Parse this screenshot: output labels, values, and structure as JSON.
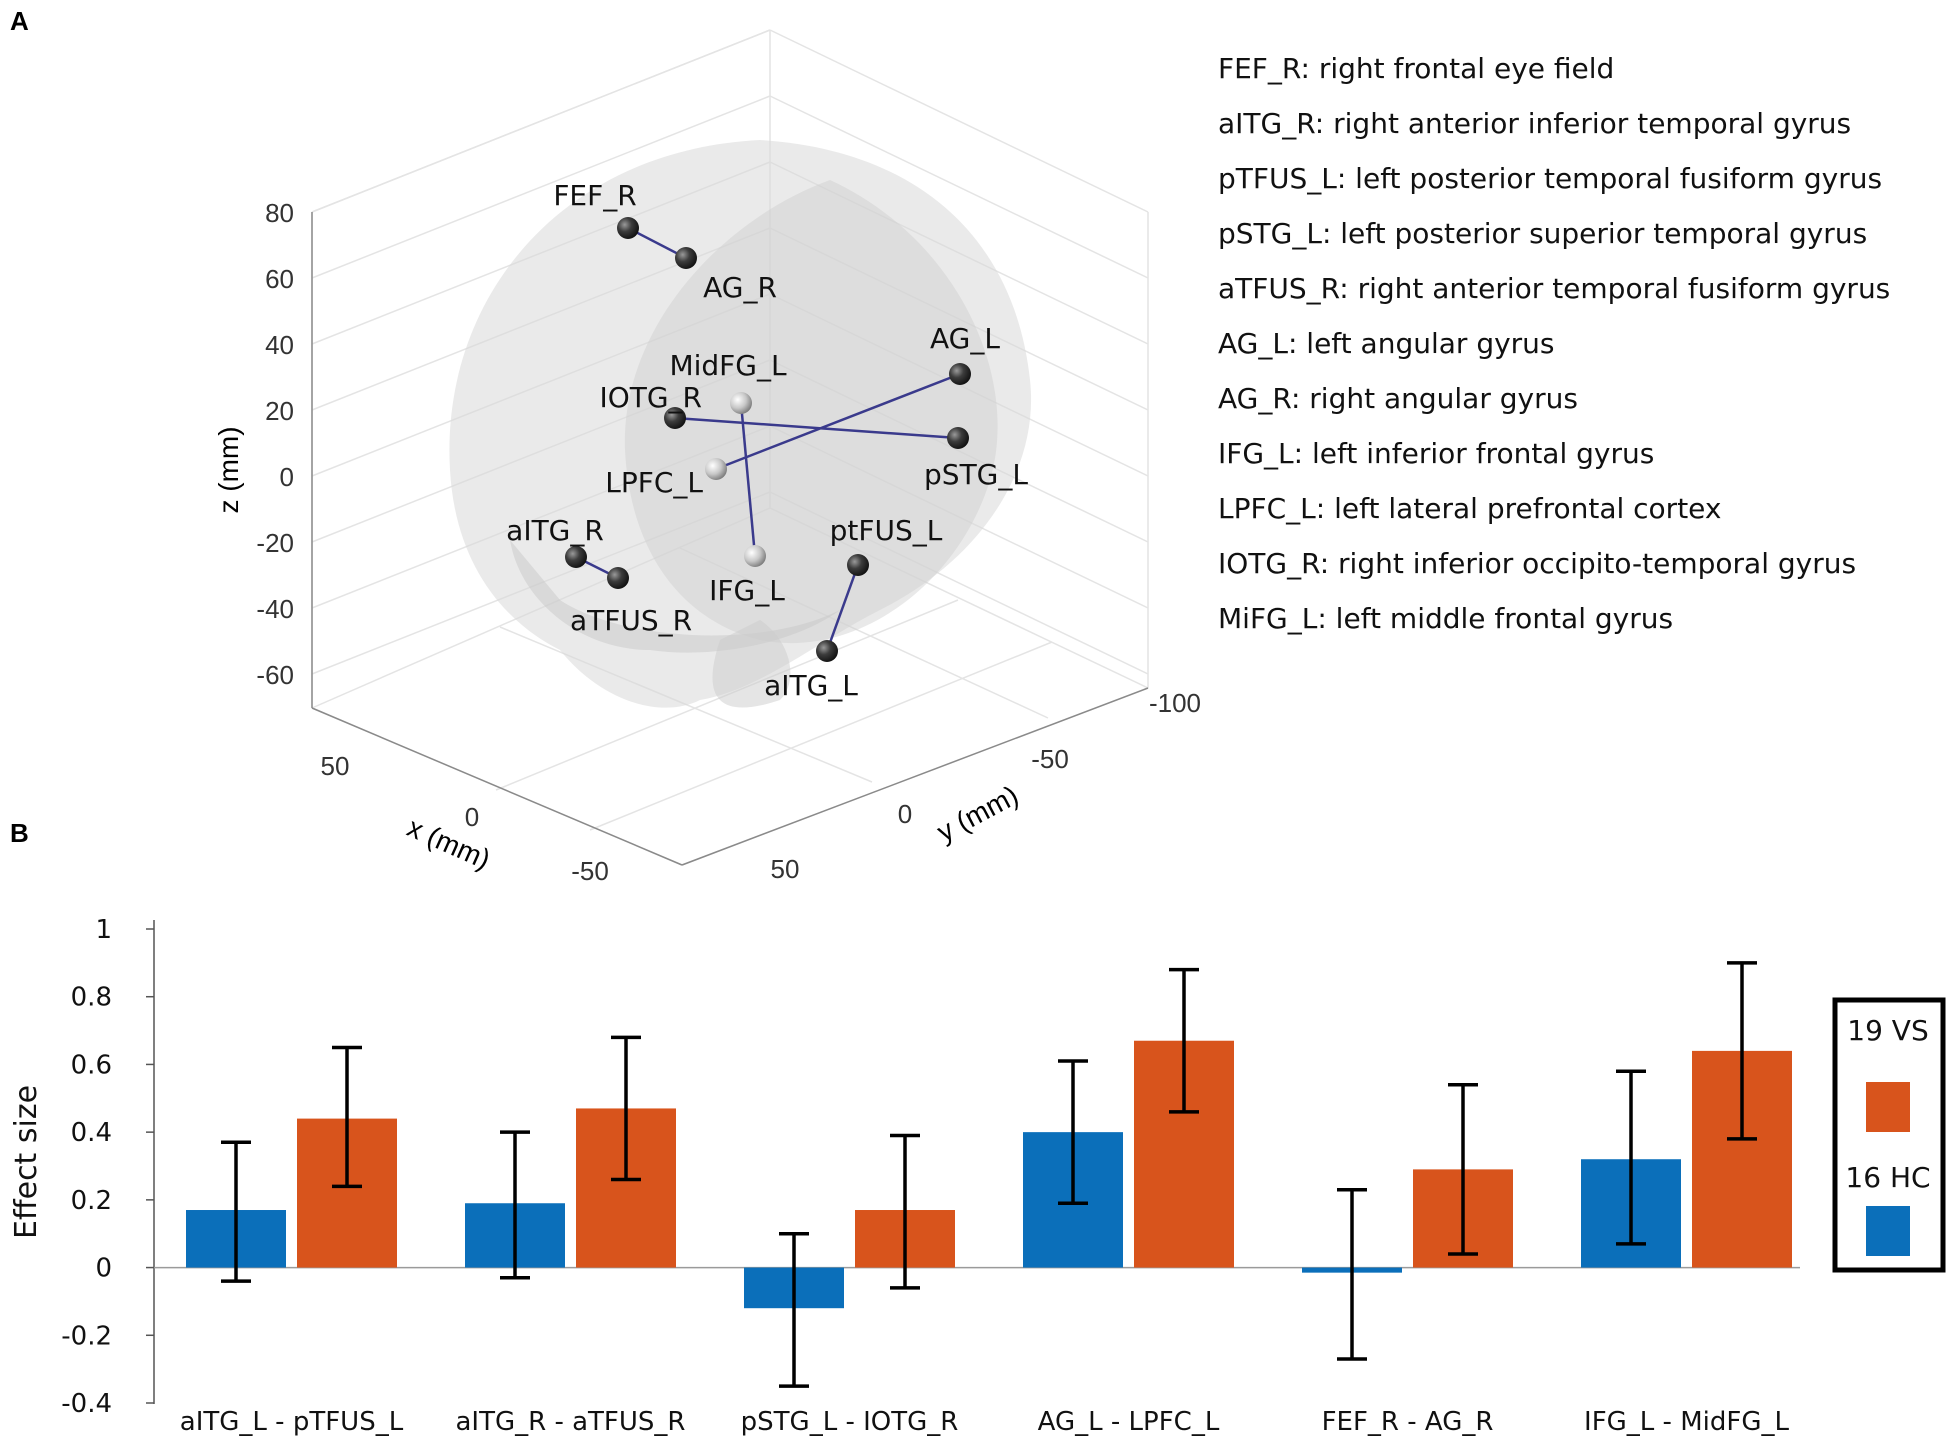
{
  "panels": {
    "a": "A",
    "b": "B"
  },
  "brain": {
    "z_label": "z (mm)",
    "x_label": "x (mm)",
    "y_label": "y (mm)",
    "z_ticks": [
      "80",
      "60",
      "40",
      "20",
      "0",
      "-20",
      "-40",
      "-60"
    ],
    "x_ticks": [
      "50",
      "0",
      "-50"
    ],
    "y_ticks": [
      "-100",
      "-50",
      "0",
      "50"
    ],
    "nodes": [
      {
        "id": "FEF_R",
        "label": "FEF_R",
        "shade": "dark"
      },
      {
        "id": "AG_R",
        "label": "AG_R",
        "shade": "dark"
      },
      {
        "id": "MidFG_L",
        "label": "MidFG_L",
        "shade": "light"
      },
      {
        "id": "IOTG_R",
        "label": "IOTG_R",
        "shade": "dark"
      },
      {
        "id": "AG_L",
        "label": "AG_L",
        "shade": "dark"
      },
      {
        "id": "pSTG_L",
        "label": "pSTG_L",
        "shade": "dark"
      },
      {
        "id": "LPFC_L",
        "label": "LPFC_L",
        "shade": "light"
      },
      {
        "id": "aITG_R",
        "label": "aITG_R",
        "shade": "dark"
      },
      {
        "id": "aTFUS_R",
        "label": "aTFUS_R",
        "shade": "dark"
      },
      {
        "id": "IFG_L",
        "label": "IFG_L",
        "shade": "light"
      },
      {
        "id": "ptFUS_L",
        "label": "ptFUS_L",
        "shade": "dark"
      },
      {
        "id": "aITG_L",
        "label": "aITG_L",
        "shade": "dark"
      }
    ],
    "edges": [
      [
        "FEF_R",
        "AG_R"
      ],
      [
        "MidFG_L",
        "IFG_L"
      ],
      [
        "IOTG_R",
        "pSTG_L"
      ],
      [
        "AG_L",
        "LPFC_L"
      ],
      [
        "aITG_R",
        "aTFUS_R"
      ],
      [
        "ptFUS_L",
        "aITG_L"
      ]
    ],
    "edge_color": "#3a3a8c"
  },
  "glossary": [
    "FEF_R: right frontal eye field",
    "aITG_R: right anterior inferior temporal gyrus",
    "pTFUS_L:  left posterior temporal fusiform gyrus",
    "pSTG_L: left posterior superior temporal gyrus",
    "aTFUS_R: right anterior temporal fusiform gyrus",
    "AG_L: left angular gyrus",
    "AG_R: right angular gyrus",
    "IFG_L: left inferior frontal gyrus",
    "LPFC_L: left lateral prefrontal cortex",
    "IOTG_R: right inferior occipito-temporal gyrus",
    "MiFG_L: left middle frontal gyrus"
  ],
  "chart_data": {
    "type": "bar",
    "title": "",
    "xlabel": "",
    "ylabel": "Effect size",
    "ylim": [
      -0.4,
      1.0
    ],
    "yticks": [
      "1",
      "0.8",
      "0.6",
      "0.4",
      "0.2",
      "0",
      "-0.2",
      "-0.4"
    ],
    "categories": [
      "aITG_L - pTFUS_L",
      "aITG_R - aTFUS_R",
      "pSTG_L - IOTG_R",
      "AG_L - LPFC_L",
      "FEF_R - AG_R",
      "IFG_L - MidFG_L"
    ],
    "series": [
      {
        "name": "16 HC",
        "color": "#0b6fba",
        "values": [
          0.17,
          0.19,
          -0.12,
          0.4,
          -0.015,
          0.32
        ],
        "err_low": [
          -0.04,
          -0.03,
          -0.35,
          0.19,
          -0.27,
          0.07
        ],
        "err_high": [
          0.37,
          0.4,
          0.1,
          0.61,
          0.23,
          0.58
        ]
      },
      {
        "name": "19 VS",
        "color": "#d8541c",
        "values": [
          0.44,
          0.47,
          0.17,
          0.67,
          0.29,
          0.64
        ],
        "err_low": [
          0.24,
          0.26,
          -0.06,
          0.46,
          0.04,
          0.38
        ],
        "err_high": [
          0.65,
          0.68,
          0.39,
          0.88,
          0.54,
          0.9
        ]
      }
    ],
    "legend": {
      "position": "right",
      "items": [
        "19 VS",
        "16 HC"
      ]
    },
    "grid": false
  }
}
